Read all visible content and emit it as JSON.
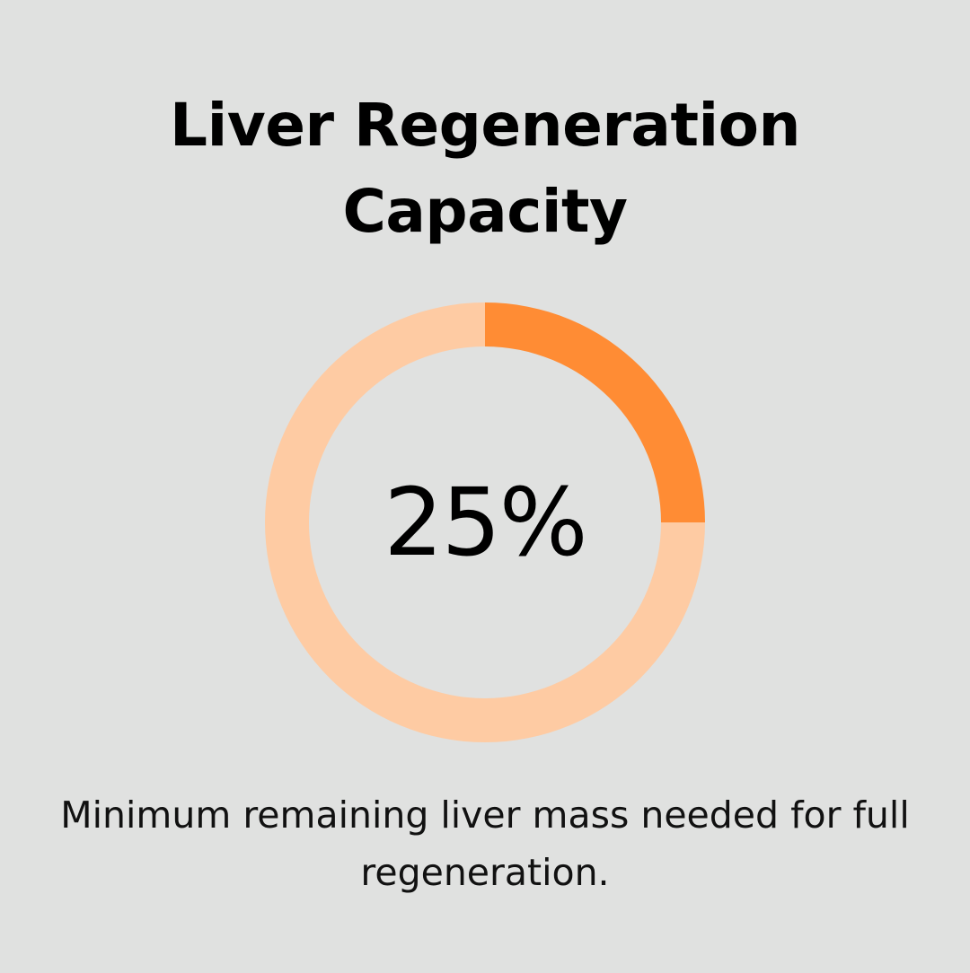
{
  "title_line1": "Liver Regeneration",
  "title_line2": "Capacity",
  "caption": "Minimum remaining liver mass needed for full regeneration.",
  "colors": {
    "background": "#e0e1e0",
    "filled": "#ff8c34",
    "track": "#fecba3"
  },
  "chart_data": {
    "type": "pie",
    "center_label": "25%",
    "slices": [
      {
        "value": 25,
        "color": "#ff8c34"
      },
      {
        "value": 75,
        "color": "#fecba3"
      }
    ]
  }
}
